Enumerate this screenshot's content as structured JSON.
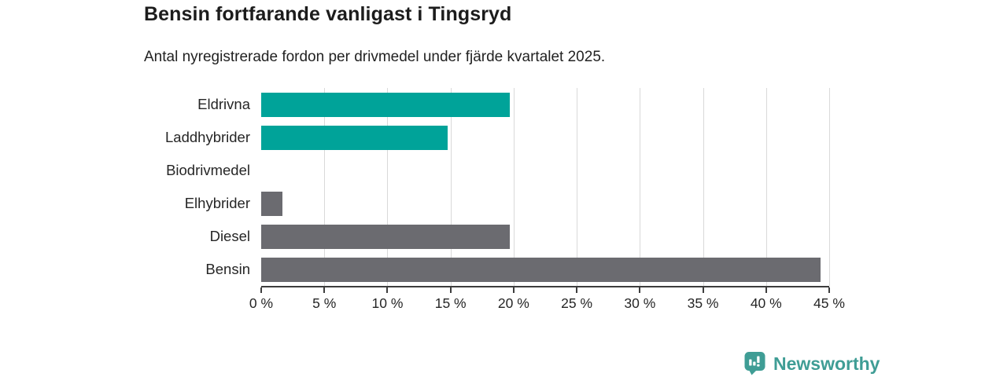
{
  "header": {
    "title": "Bensin fortfarande vanligast i Tingsryd",
    "subtitle": "Antal nyregistrerade fordon per drivmedel under fjärde kvartalet 2025."
  },
  "chart_data": {
    "type": "bar",
    "orientation": "horizontal",
    "title": "Bensin fortfarande vanligast i Tingsryd",
    "subtitle": "Antal nyregistrerade fordon per drivmedel under fjärde kvartalet 2025.",
    "categories": [
      "Eldrivna",
      "Laddhybrider",
      "Biodrivmedel",
      "Elhybrider",
      "Diesel",
      "Bensin"
    ],
    "values": [
      19.7,
      14.8,
      0,
      1.7,
      19.7,
      44.3
    ],
    "unit": "%",
    "xlabel": "",
    "ylabel": "",
    "xlim": [
      0,
      45
    ],
    "x_ticks": [
      0,
      5,
      10,
      15,
      20,
      25,
      30,
      35,
      40,
      45
    ],
    "x_tick_labels": [
      "0 %",
      "5 %",
      "10 %",
      "15 %",
      "20 %",
      "25 %",
      "30 %",
      "35 %",
      "40 %",
      "45 %"
    ],
    "bar_colors": [
      "#00a399",
      "#00a399",
      "#00a399",
      "#6b6b70",
      "#6b6b70",
      "#6b6b70"
    ],
    "grid": true,
    "legend": false
  },
  "colors": {
    "electric_teal": "#00a399",
    "fossil_gray": "#6b6b70",
    "gridline": "#d9d9d9",
    "axis": "#3d3d3d",
    "logo_teal": "#3f9d95"
  },
  "branding": {
    "logo_text": "Newsworthy"
  }
}
